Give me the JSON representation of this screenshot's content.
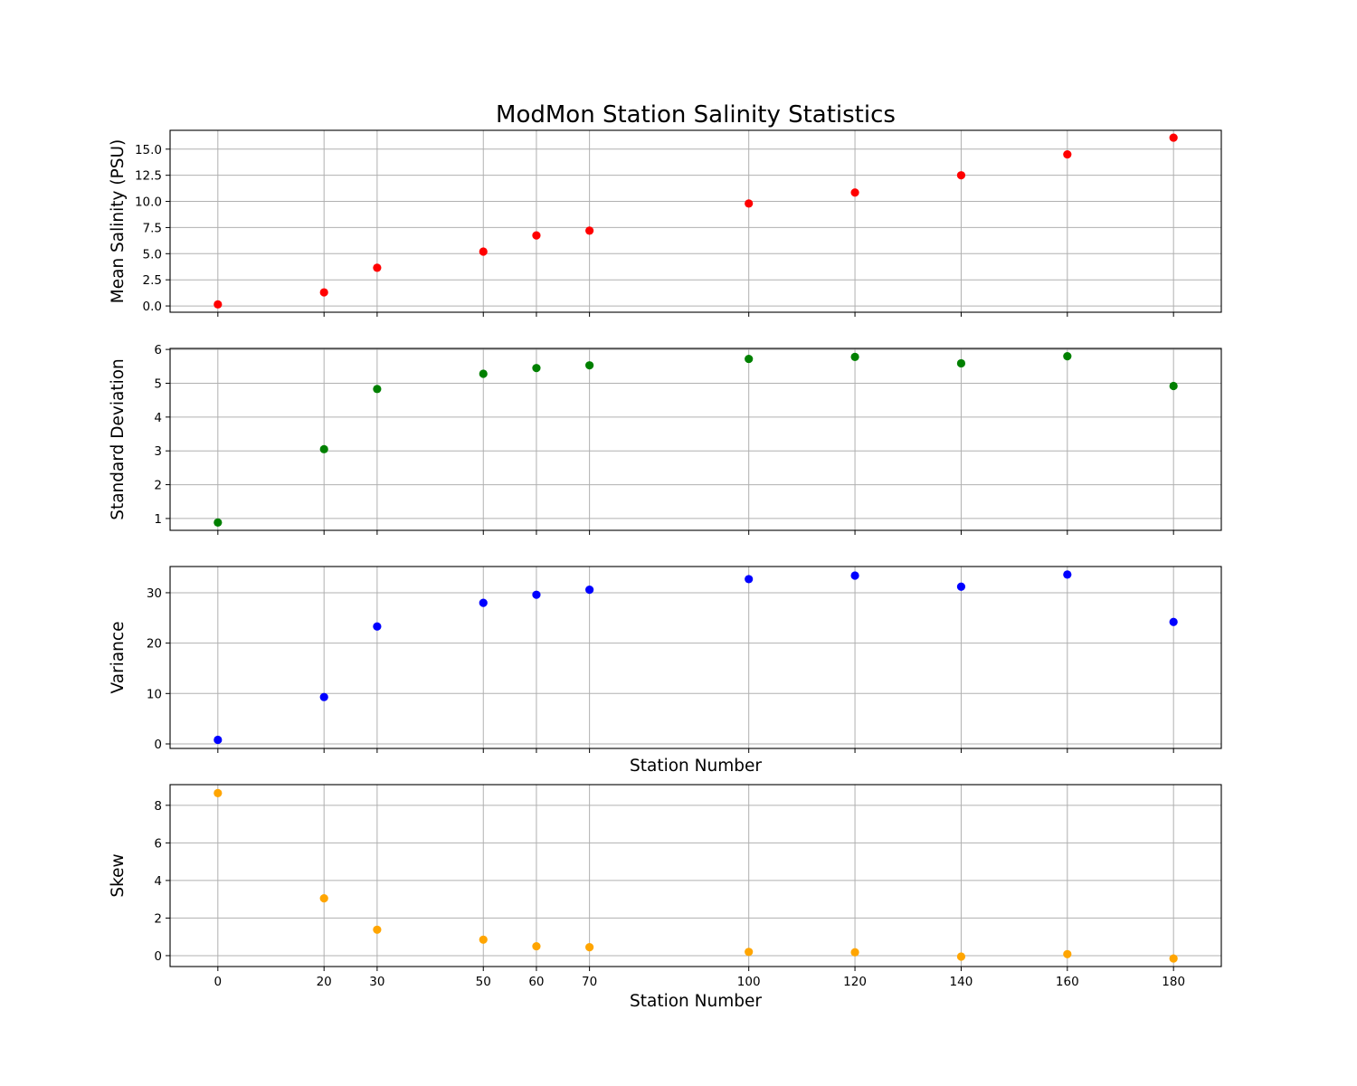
{
  "chart_data": {
    "type": "scatter",
    "title": "ModMon Station Salinity Statistics",
    "x": [
      0,
      20,
      30,
      50,
      60,
      70,
      100,
      120,
      140,
      160,
      180
    ],
    "xticks": [
      0,
      20,
      30,
      50,
      60,
      70,
      100,
      120,
      140,
      160,
      180
    ],
    "xlim": [
      -9,
      189
    ],
    "grid": true,
    "legend": "none",
    "subplots": [
      {
        "id": "mean",
        "ylabel": "Mean Salinity (PSU)",
        "xlabel": "",
        "color": "#ff0000",
        "values": [
          0.15,
          1.3,
          3.65,
          5.2,
          6.75,
          7.2,
          9.8,
          10.85,
          12.5,
          14.5,
          16.1
        ],
        "ylim": [
          -0.6,
          16.8
        ],
        "yticks": [
          0.0,
          2.5,
          5.0,
          7.5,
          10.0,
          12.5,
          15.0
        ],
        "ytick_labels": [
          "0.0",
          "2.5",
          "5.0",
          "7.5",
          "10.0",
          "12.5",
          "15.0"
        ]
      },
      {
        "id": "std",
        "ylabel": "Standard Deviation",
        "xlabel": "",
        "color": "#008000",
        "values": [
          0.88,
          3.05,
          4.83,
          5.28,
          5.45,
          5.53,
          5.72,
          5.78,
          5.59,
          5.8,
          4.92
        ],
        "ylim": [
          0.65,
          6.03
        ],
        "yticks": [
          1,
          2,
          3,
          4,
          5,
          6
        ],
        "ytick_labels": [
          "1",
          "2",
          "3",
          "4",
          "5",
          "6"
        ]
      },
      {
        "id": "variance",
        "ylabel": "Variance",
        "xlabel": "Station Number",
        "color": "#0000ff",
        "values": [
          0.8,
          9.3,
          23.3,
          28.0,
          29.6,
          30.6,
          32.7,
          33.4,
          31.2,
          33.6,
          24.2
        ],
        "ylim": [
          -0.9,
          35.2
        ],
        "yticks": [
          0,
          10,
          20,
          30
        ],
        "ytick_labels": [
          "0",
          "10",
          "20",
          "30"
        ]
      },
      {
        "id": "skew",
        "ylabel": "Skew",
        "xlabel": "Station Number",
        "color": "#ffa500",
        "values": [
          8.65,
          3.05,
          1.38,
          0.85,
          0.5,
          0.45,
          0.2,
          0.18,
          -0.05,
          0.08,
          -0.15
        ],
        "ylim": [
          -0.58,
          9.1
        ],
        "yticks": [
          0,
          2,
          4,
          6,
          8
        ],
        "ytick_labels": [
          "0",
          "2",
          "4",
          "6",
          "8"
        ]
      }
    ]
  }
}
